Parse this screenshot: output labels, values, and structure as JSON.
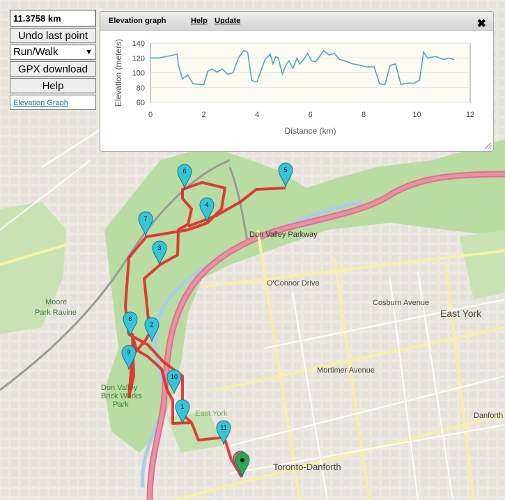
{
  "controls": {
    "distance": "11.3758 km",
    "undo_label": "Undo last point",
    "activity": "Run/Walk",
    "gpx_label": "GPX download",
    "help_label": "Help",
    "elevation_link": "Elevation Graph"
  },
  "graph_window": {
    "title": "Elevation graph",
    "help": "Help",
    "update": "Update",
    "close": "✖"
  },
  "chart_data": {
    "type": "line",
    "title": "",
    "xlabel": "Distance (km)",
    "ylabel": "Elevation (meters)",
    "xlim": [
      0,
      12
    ],
    "ylim": [
      60,
      140
    ],
    "x_ticks": [
      0,
      2,
      4,
      6,
      8,
      10,
      12
    ],
    "y_ticks": [
      60,
      80,
      100,
      120,
      140
    ],
    "series": [
      {
        "color": "#4aa6c8",
        "x": [
          0,
          0.3,
          0.6,
          1.0,
          1.05,
          1.2,
          1.4,
          1.6,
          2.0,
          2.15,
          2.3,
          2.5,
          2.7,
          2.9,
          3.1,
          3.3,
          3.5,
          3.65,
          3.8,
          3.9,
          4.0,
          4.3,
          4.5,
          4.6,
          4.7,
          4.8,
          4.95,
          5.1,
          5.2,
          5.35,
          5.5,
          5.6,
          5.75,
          5.9,
          6.05,
          6.2,
          6.35,
          6.5,
          6.7,
          6.9,
          7.1,
          7.3,
          7.6,
          7.9,
          8.1,
          8.4,
          8.6,
          8.8,
          9.0,
          9.2,
          9.4,
          9.6,
          9.9,
          10.1,
          10.25,
          10.4,
          10.7,
          11.0,
          11.2,
          11.4
        ],
        "y": [
          120,
          120,
          122,
          125,
          110,
          92,
          97,
          85,
          84,
          102,
          105,
          101,
          105,
          98,
          100,
          120,
          130,
          128,
          90,
          88,
          88,
          118,
          125,
          112,
          122,
          120,
          98,
          112,
          116,
          106,
          120,
          112,
          118,
          126,
          116,
          115,
          122,
          130,
          124,
          126,
          118,
          116,
          112,
          110,
          108,
          108,
          85,
          84,
          110,
          112,
          84,
          86,
          86,
          90,
          128,
          120,
          122,
          118,
          120,
          118
        ]
      }
    ]
  }
}
